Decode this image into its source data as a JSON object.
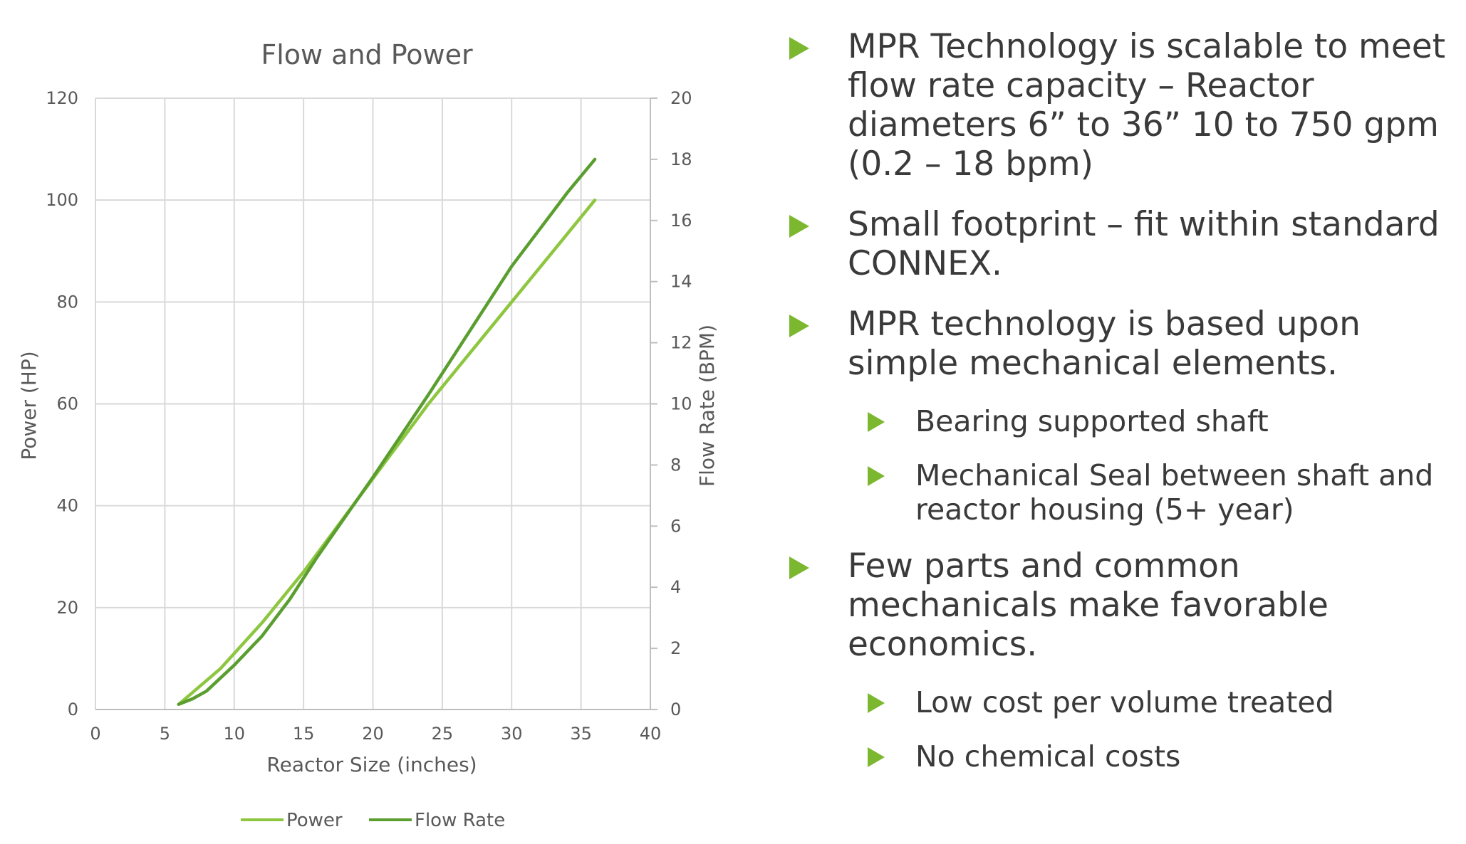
{
  "chart_data": {
    "type": "line",
    "title": "Flow and Power",
    "xlabel": "Reactor Size (inches)",
    "ylabel": "Power (HP)",
    "y2label": "Flow Rate (BPM)",
    "xlim": [
      0,
      40
    ],
    "ylim": [
      0,
      120
    ],
    "y2lim": [
      0,
      20
    ],
    "xticks": [
      0,
      5,
      10,
      15,
      20,
      25,
      30,
      35,
      40
    ],
    "yticks": [
      0,
      20,
      40,
      60,
      80,
      100,
      120
    ],
    "y2ticks": [
      0,
      2,
      4,
      6,
      8,
      10,
      12,
      14,
      16,
      18,
      20
    ],
    "grid": true,
    "legend_position": "bottom",
    "series": [
      {
        "name": "Power",
        "axis": "left",
        "color": "#8dc63f",
        "x": [
          6,
          9,
          12,
          15,
          18,
          21,
          24,
          27,
          30,
          33,
          36
        ],
        "y": [
          1,
          8,
          17,
          27,
          38,
          49,
          60,
          70,
          80,
          90,
          100
        ]
      },
      {
        "name": "Flow Rate",
        "axis": "right",
        "color": "#5a9e2f",
        "x": [
          6,
          7,
          8,
          10,
          12,
          14,
          16,
          18,
          20,
          22,
          24,
          26,
          28,
          30,
          32,
          34,
          36
        ],
        "y": [
          0.17,
          0.35,
          0.6,
          1.45,
          2.4,
          3.6,
          5.0,
          6.3,
          7.6,
          8.95,
          10.3,
          11.7,
          13.1,
          14.5,
          15.7,
          16.9,
          18.0
        ]
      }
    ]
  },
  "bullets": [
    {
      "level": 1,
      "text": "MPR Technology is scalable to meet flow rate capacity – Reactor diameters 6” to 36” 10 to 750 gpm (0.2 – 18 bpm)"
    },
    {
      "level": 1,
      "text": "Small footprint – fit within standard CONNEX."
    },
    {
      "level": 1,
      "text": "MPR technology is based upon simple mechanical elements."
    },
    {
      "level": 2,
      "text": "Bearing supported shaft"
    },
    {
      "level": 2,
      "text": "Mechanical Seal between shaft and reactor housing (5+ year)"
    },
    {
      "level": 1,
      "text": "Few parts and common mechanicals make favorable economics."
    },
    {
      "level": 2,
      "text": "Low cost per volume treated"
    },
    {
      "level": 2,
      "text": "No chemical costs"
    }
  ],
  "colors": {
    "accent": "#7cb82f",
    "text": "#3a3a3a",
    "axis_text": "#595959",
    "grid": "#d9d9d9",
    "axis_line": "#bfbfbf"
  }
}
